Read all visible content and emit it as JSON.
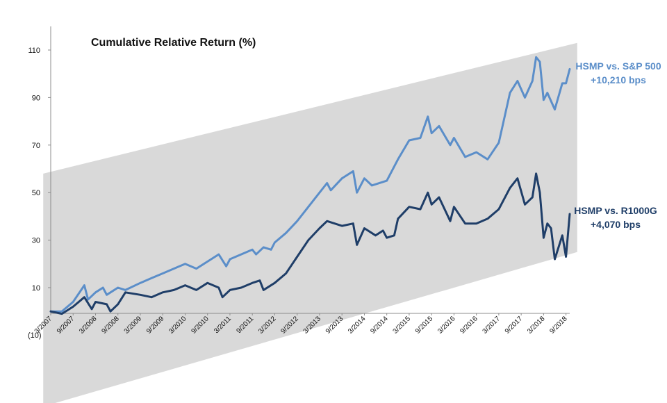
{
  "chart_data": {
    "type": "line",
    "title": "Cumulative Relative Return (%)",
    "xlabel": "",
    "ylabel": "",
    "ylim": [
      -10,
      120
    ],
    "y_ticks": [
      110,
      90,
      70,
      50,
      30,
      10
    ],
    "y_tick_labels": [
      "110",
      "90",
      "70",
      "50",
      "30",
      "10"
    ],
    "y_bottom_label": "(10)",
    "grid": false,
    "x_tick_labels": [
      "3/2007",
      "9/2007",
      "3/2008",
      "9/2008",
      "3/2009",
      "9/2009",
      "3/2010",
      "9/2010",
      "3/2011",
      "9/2011",
      "3/2012",
      "9/2012",
      "3/2013",
      "9/2013",
      "3/2014",
      "9/2014",
      "3/2015",
      "9/2015",
      "3/2016",
      "9/2016",
      "3/2017",
      "9/2017",
      "3/2018",
      "9/2018"
    ],
    "x_start": "3/2007",
    "x_end": "10/2018",
    "channel": {
      "color": "#d9d9d9",
      "lower": [
        {
          "x": "1/2007",
          "y": -40
        },
        {
          "x": "12/2018",
          "y": 25
        }
      ],
      "upper": [
        {
          "x": "1/2007",
          "y": 58
        },
        {
          "x": "12/2018",
          "y": 113
        }
      ]
    },
    "series": [
      {
        "name": "HSMP vs. S&P 500",
        "label_lines": [
          "HSMP vs. S&P 500",
          "+10,210 bps"
        ],
        "color": "#5b8ec9",
        "points": [
          {
            "x": "3/2007",
            "y": 0
          },
          {
            "x": "6/2007",
            "y": 0
          },
          {
            "x": "9/2007",
            "y": 4
          },
          {
            "x": "12/2007",
            "y": 11
          },
          {
            "x": "1/2008",
            "y": 5
          },
          {
            "x": "3/2008",
            "y": 8
          },
          {
            "x": "5/2008",
            "y": 10
          },
          {
            "x": "6/2008",
            "y": 7
          },
          {
            "x": "9/2008",
            "y": 10
          },
          {
            "x": "11/2008",
            "y": 9
          },
          {
            "x": "3/2009",
            "y": 12
          },
          {
            "x": "6/2009",
            "y": 14
          },
          {
            "x": "9/2009",
            "y": 16
          },
          {
            "x": "12/2009",
            "y": 18
          },
          {
            "x": "3/2010",
            "y": 20
          },
          {
            "x": "6/2010",
            "y": 18
          },
          {
            "x": "9/2010",
            "y": 21
          },
          {
            "x": "12/2010",
            "y": 24
          },
          {
            "x": "2/2011",
            "y": 19
          },
          {
            "x": "3/2011",
            "y": 22
          },
          {
            "x": "6/2011",
            "y": 24
          },
          {
            "x": "9/2011",
            "y": 26
          },
          {
            "x": "10/2011",
            "y": 24
          },
          {
            "x": "12/2011",
            "y": 27
          },
          {
            "x": "2/2012",
            "y": 26
          },
          {
            "x": "3/2012",
            "y": 29
          },
          {
            "x": "6/2012",
            "y": 33
          },
          {
            "x": "9/2012",
            "y": 38
          },
          {
            "x": "12/2012",
            "y": 44
          },
          {
            "x": "3/2013",
            "y": 50
          },
          {
            "x": "5/2013",
            "y": 54
          },
          {
            "x": "6/2013",
            "y": 51
          },
          {
            "x": "9/2013",
            "y": 56
          },
          {
            "x": "12/2013",
            "y": 59
          },
          {
            "x": "1/2014",
            "y": 50
          },
          {
            "x": "3/2014",
            "y": 56
          },
          {
            "x": "5/2014",
            "y": 53
          },
          {
            "x": "9/2014",
            "y": 55
          },
          {
            "x": "12/2014",
            "y": 64
          },
          {
            "x": "3/2015",
            "y": 72
          },
          {
            "x": "6/2015",
            "y": 73
          },
          {
            "x": "8/2015",
            "y": 82
          },
          {
            "x": "9/2015",
            "y": 75
          },
          {
            "x": "11/2015",
            "y": 78
          },
          {
            "x": "2/2016",
            "y": 70
          },
          {
            "x": "3/2016",
            "y": 73
          },
          {
            "x": "6/2016",
            "y": 65
          },
          {
            "x": "9/2016",
            "y": 67
          },
          {
            "x": "12/2016",
            "y": 64
          },
          {
            "x": "3/2017",
            "y": 71
          },
          {
            "x": "6/2017",
            "y": 92
          },
          {
            "x": "8/2017",
            "y": 97
          },
          {
            "x": "10/2017",
            "y": 90
          },
          {
            "x": "12/2017",
            "y": 97
          },
          {
            "x": "1/2018",
            "y": 107
          },
          {
            "x": "2/2018",
            "y": 105
          },
          {
            "x": "3/2018",
            "y": 89
          },
          {
            "x": "4/2018",
            "y": 92
          },
          {
            "x": "6/2018",
            "y": 85
          },
          {
            "x": "8/2018",
            "y": 96
          },
          {
            "x": "9/2018",
            "y": 96
          },
          {
            "x": "10/2018",
            "y": 102
          }
        ]
      },
      {
        "name": "HSMP vs. R1000G",
        "label_lines": [
          "HSMP vs. R1000G",
          "+4,070 bps"
        ],
        "color": "#1f3e68",
        "points": [
          {
            "x": "3/2007",
            "y": 0
          },
          {
            "x": "6/2007",
            "y": -1
          },
          {
            "x": "9/2007",
            "y": 2
          },
          {
            "x": "12/2007",
            "y": 6
          },
          {
            "x": "2/2008",
            "y": 1
          },
          {
            "x": "3/2008",
            "y": 4
          },
          {
            "x": "6/2008",
            "y": 3
          },
          {
            "x": "7/2008",
            "y": 0
          },
          {
            "x": "9/2008",
            "y": 3
          },
          {
            "x": "11/2008",
            "y": 8
          },
          {
            "x": "3/2009",
            "y": 7
          },
          {
            "x": "6/2009",
            "y": 6
          },
          {
            "x": "9/2009",
            "y": 8
          },
          {
            "x": "12/2009",
            "y": 9
          },
          {
            "x": "3/2010",
            "y": 11
          },
          {
            "x": "6/2010",
            "y": 9
          },
          {
            "x": "9/2010",
            "y": 12
          },
          {
            "x": "12/2010",
            "y": 10
          },
          {
            "x": "1/2011",
            "y": 6
          },
          {
            "x": "3/2011",
            "y": 9
          },
          {
            "x": "6/2011",
            "y": 10
          },
          {
            "x": "9/2011",
            "y": 12
          },
          {
            "x": "11/2011",
            "y": 13
          },
          {
            "x": "12/2011",
            "y": 9
          },
          {
            "x": "3/2012",
            "y": 12
          },
          {
            "x": "6/2012",
            "y": 16
          },
          {
            "x": "9/2012",
            "y": 23
          },
          {
            "x": "12/2012",
            "y": 30
          },
          {
            "x": "3/2013",
            "y": 35
          },
          {
            "x": "5/2013",
            "y": 38
          },
          {
            "x": "9/2013",
            "y": 36
          },
          {
            "x": "12/2013",
            "y": 37
          },
          {
            "x": "1/2014",
            "y": 28
          },
          {
            "x": "3/2014",
            "y": 35
          },
          {
            "x": "6/2014",
            "y": 32
          },
          {
            "x": "8/2014",
            "y": 34
          },
          {
            "x": "9/2014",
            "y": 31
          },
          {
            "x": "11/2014",
            "y": 32
          },
          {
            "x": "12/2014",
            "y": 39
          },
          {
            "x": "3/2015",
            "y": 44
          },
          {
            "x": "6/2015",
            "y": 43
          },
          {
            "x": "8/2015",
            "y": 50
          },
          {
            "x": "9/2015",
            "y": 45
          },
          {
            "x": "11/2015",
            "y": 48
          },
          {
            "x": "2/2016",
            "y": 38
          },
          {
            "x": "3/2016",
            "y": 44
          },
          {
            "x": "6/2016",
            "y": 37
          },
          {
            "x": "9/2016",
            "y": 37
          },
          {
            "x": "12/2016",
            "y": 39
          },
          {
            "x": "3/2017",
            "y": 43
          },
          {
            "x": "6/2017",
            "y": 52
          },
          {
            "x": "8/2017",
            "y": 56
          },
          {
            "x": "10/2017",
            "y": 45
          },
          {
            "x": "12/2017",
            "y": 48
          },
          {
            "x": "1/2018",
            "y": 58
          },
          {
            "x": "2/2018",
            "y": 50
          },
          {
            "x": "3/2018",
            "y": 31
          },
          {
            "x": "4/2018",
            "y": 37
          },
          {
            "x": "5/2018",
            "y": 35
          },
          {
            "x": "6/2018",
            "y": 22
          },
          {
            "x": "8/2018",
            "y": 32
          },
          {
            "x": "9/2018",
            "y": 23
          },
          {
            "x": "10/2018",
            "y": 41
          }
        ]
      }
    ]
  }
}
